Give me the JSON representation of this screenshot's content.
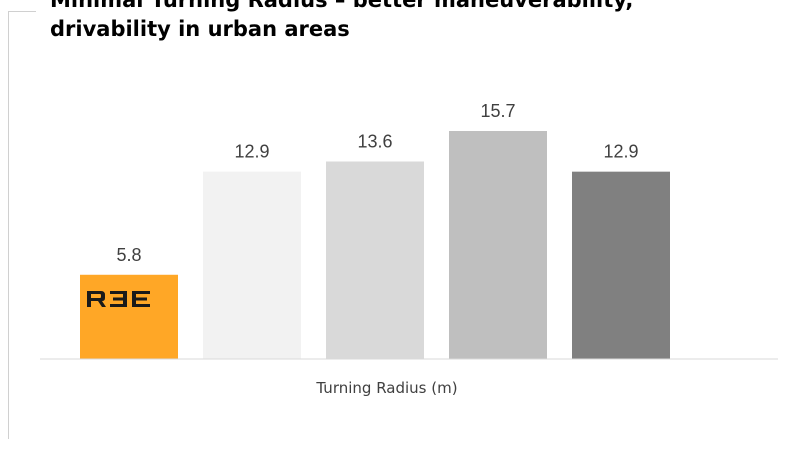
{
  "title_lines": [
    "Minimal Turning Radius – better maneuverability,",
    "drivability in urban areas"
  ],
  "chart_data": {
    "type": "bar",
    "title": "Minimal Turning Radius – better maneuverability, drivability in urban areas",
    "xlabel": "Turning Radius (m)",
    "ylabel": "",
    "categories": [
      "",
      "",
      "",
      "",
      ""
    ],
    "values": [
      5.8,
      12.9,
      13.6,
      15.7,
      12.9
    ],
    "data_labels": [
      "5.8",
      "12.9",
      "13.6",
      "15.7",
      "12.9"
    ],
    "colors": [
      "#FFA726",
      "#F2F2F2",
      "#D9D9D9",
      "#BFBFBF",
      "#808080"
    ],
    "ylim": [
      0,
      18.0
    ],
    "grid": false,
    "legend": "none"
  },
  "logo": {
    "text": "R3E",
    "color": "#1a1a1a"
  }
}
